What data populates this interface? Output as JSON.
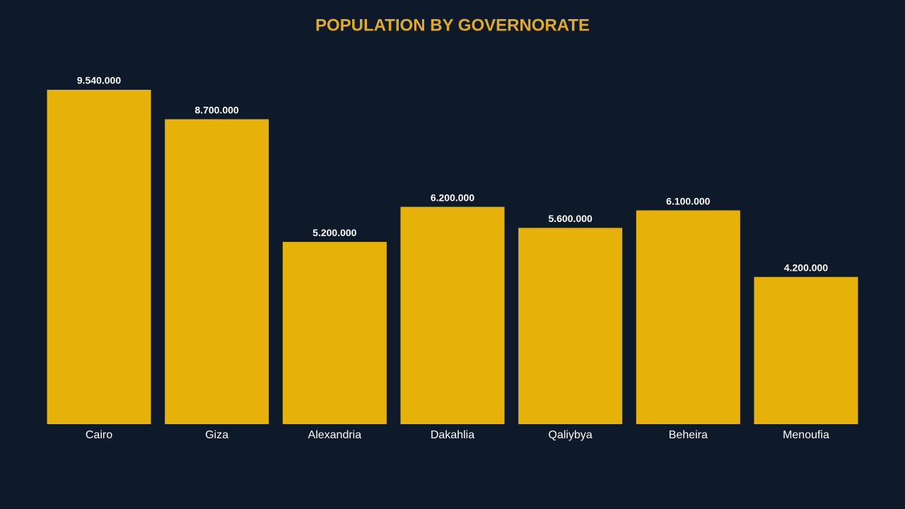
{
  "chart_data": {
    "type": "bar",
    "title": "POPULATION BY GOVERNORATE",
    "categories": [
      "Cairo",
      "Giza",
      "Alexandria",
      "Dakahlia",
      "Qaliybya",
      "Beheira",
      "Menoufia"
    ],
    "values": [
      9540000,
      8700000,
      5200000,
      6200000,
      5600000,
      6100000,
      4200000
    ],
    "value_labels": [
      "9.540.000",
      "8.700.000",
      "5.200.000",
      "6.200.000",
      "5.600.000",
      "6.100.000",
      "4.200.000"
    ],
    "color": "#e6b20a"
  }
}
